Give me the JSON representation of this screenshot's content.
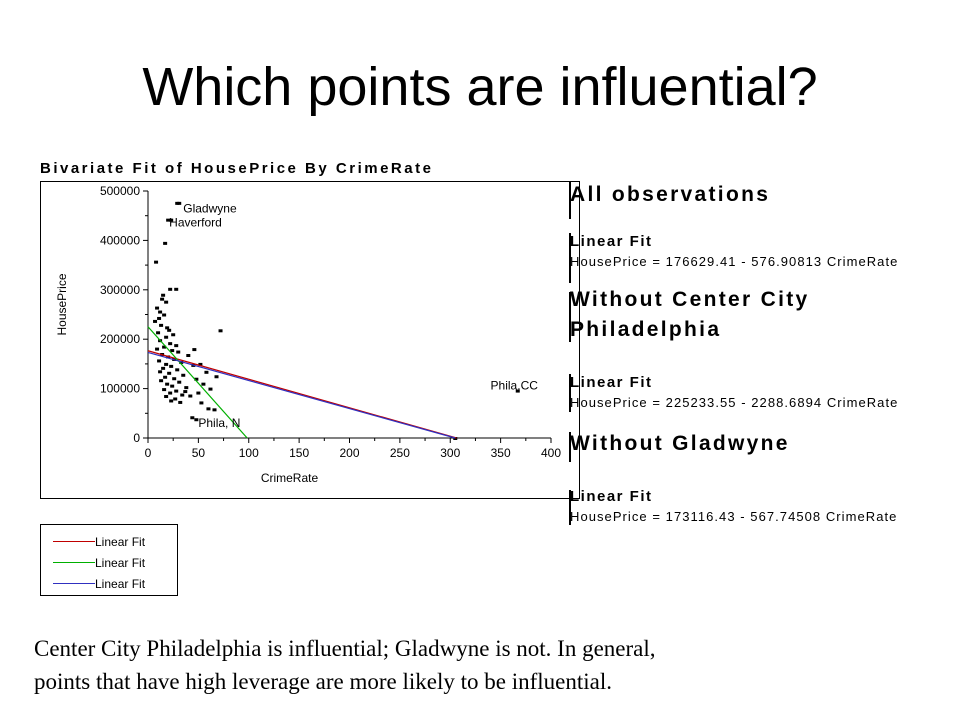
{
  "slide": {
    "title": "Which points are influential?",
    "caption_line1": "Center City Philadelphia is influential; Gladwyne is not.  In general,",
    "caption_line2": "points that have high leverage are more likely to be influential."
  },
  "legend": {
    "items": [
      {
        "label": "Linear Fit",
        "color": "#c00000"
      },
      {
        "label": "Linear Fit",
        "color": "#00b000"
      },
      {
        "label": "Linear Fit",
        "color": "#3030c0"
      }
    ]
  },
  "side_panel": {
    "sections": [
      {
        "heading": "All observations",
        "fit_label": "Linear Fit",
        "equation": "HousePrice = 176629.41 - 576.90813 CrimeRate"
      },
      {
        "heading_line1": "Without Center City",
        "heading_line2": "Philadelphia",
        "fit_label": "Linear Fit",
        "equation": "HousePrice = 225233.55 - 2288.6894 CrimeRate"
      },
      {
        "heading": "Without Gladwyne",
        "fit_label": "Linear Fit",
        "equation": "HousePrice = 173116.43 - 567.74508 CrimeRate"
      }
    ]
  },
  "chart_data": {
    "type": "scatter",
    "title": "Bivariate Fit of HousePrice By CrimeRate",
    "xlabel": "CrimeRate",
    "ylabel": "HousePrice",
    "xlim": [
      0,
      400
    ],
    "ylim": [
      0,
      500000
    ],
    "xticks": [
      0,
      50,
      100,
      150,
      200,
      250,
      300,
      350,
      400
    ],
    "yticks": [
      0,
      100000,
      200000,
      300000,
      400000,
      500000
    ],
    "ytick_labels": [
      "0",
      "100000",
      "200000",
      "300000",
      "400000",
      "500000"
    ],
    "grid": false,
    "annotations": [
      {
        "text": "Gladwyne",
        "x": 35,
        "y": 465000
      },
      {
        "text": "Haverford",
        "x": 21,
        "y": 436000
      },
      {
        "text": "Phila,CC",
        "x": 340,
        "y": 106000
      },
      {
        "text": "Phila, N",
        "x": 50,
        "y": 30000
      }
    ],
    "points": [
      {
        "x": 29,
        "y": 476000
      },
      {
        "x": 31,
        "y": 476000
      },
      {
        "x": 20,
        "y": 442000
      },
      {
        "x": 23,
        "y": 442000
      },
      {
        "x": 17,
        "y": 395000
      },
      {
        "x": 8,
        "y": 357000
      },
      {
        "x": 22,
        "y": 302000
      },
      {
        "x": 28,
        "y": 302000
      },
      {
        "x": 15,
        "y": 290000
      },
      {
        "x": 14,
        "y": 282000
      },
      {
        "x": 18,
        "y": 276000
      },
      {
        "x": 9,
        "y": 264000
      },
      {
        "x": 12,
        "y": 256000
      },
      {
        "x": 16,
        "y": 250000
      },
      {
        "x": 11,
        "y": 243000
      },
      {
        "x": 7,
        "y": 237000
      },
      {
        "x": 13,
        "y": 229000
      },
      {
        "x": 19,
        "y": 224000
      },
      {
        "x": 21,
        "y": 219000
      },
      {
        "x": 10,
        "y": 214000
      },
      {
        "x": 25,
        "y": 210000
      },
      {
        "x": 18,
        "y": 205000
      },
      {
        "x": 12,
        "y": 198000
      },
      {
        "x": 22,
        "y": 192000
      },
      {
        "x": 28,
        "y": 188000
      },
      {
        "x": 16,
        "y": 185000
      },
      {
        "x": 9,
        "y": 181000
      },
      {
        "x": 24,
        "y": 178000
      },
      {
        "x": 30,
        "y": 175000
      },
      {
        "x": 14,
        "y": 170000
      },
      {
        "x": 20,
        "y": 165000
      },
      {
        "x": 26,
        "y": 160000
      },
      {
        "x": 11,
        "y": 157000
      },
      {
        "x": 33,
        "y": 154000
      },
      {
        "x": 18,
        "y": 150000
      },
      {
        "x": 23,
        "y": 146000
      },
      {
        "x": 15,
        "y": 142000
      },
      {
        "x": 29,
        "y": 139000
      },
      {
        "x": 12,
        "y": 135000
      },
      {
        "x": 21,
        "y": 132000
      },
      {
        "x": 35,
        "y": 128000
      },
      {
        "x": 17,
        "y": 124000
      },
      {
        "x": 26,
        "y": 121000
      },
      {
        "x": 13,
        "y": 117000
      },
      {
        "x": 31,
        "y": 114000
      },
      {
        "x": 19,
        "y": 110000
      },
      {
        "x": 24,
        "y": 106000
      },
      {
        "x": 38,
        "y": 103000
      },
      {
        "x": 16,
        "y": 99000
      },
      {
        "x": 28,
        "y": 96000
      },
      {
        "x": 22,
        "y": 92000
      },
      {
        "x": 34,
        "y": 88000
      },
      {
        "x": 18,
        "y": 85000
      },
      {
        "x": 27,
        "y": 80000
      },
      {
        "x": 23,
        "y": 76000
      },
      {
        "x": 32,
        "y": 73000
      },
      {
        "x": 40,
        "y": 168000
      },
      {
        "x": 45,
        "y": 148000
      },
      {
        "x": 52,
        "y": 150000
      },
      {
        "x": 58,
        "y": 134000
      },
      {
        "x": 48,
        "y": 120000
      },
      {
        "x": 55,
        "y": 110000
      },
      {
        "x": 50,
        "y": 92000
      },
      {
        "x": 62,
        "y": 100000
      },
      {
        "x": 68,
        "y": 125000
      },
      {
        "x": 72,
        "y": 218000
      },
      {
        "x": 46,
        "y": 180000
      },
      {
        "x": 42,
        "y": 86000
      },
      {
        "x": 60,
        "y": 60000
      },
      {
        "x": 66,
        "y": 58000
      },
      {
        "x": 53,
        "y": 72000
      },
      {
        "x": 37,
        "y": 95000
      },
      {
        "x": 44,
        "y": 42000
      },
      {
        "x": 48,
        "y": 38000
      },
      {
        "x": 305,
        "y": 0
      },
      {
        "x": 367,
        "y": 96000
      }
    ],
    "fits": [
      {
        "label": "Linear Fit",
        "color": "#c00000",
        "intercept": 176629.41,
        "slope": -576.90813
      },
      {
        "label": "Linear Fit",
        "color": "#00b000",
        "intercept": 225233.55,
        "slope": -2288.6894
      },
      {
        "label": "Linear Fit",
        "color": "#3030c0",
        "intercept": 173116.43,
        "slope": -567.74508
      }
    ]
  }
}
